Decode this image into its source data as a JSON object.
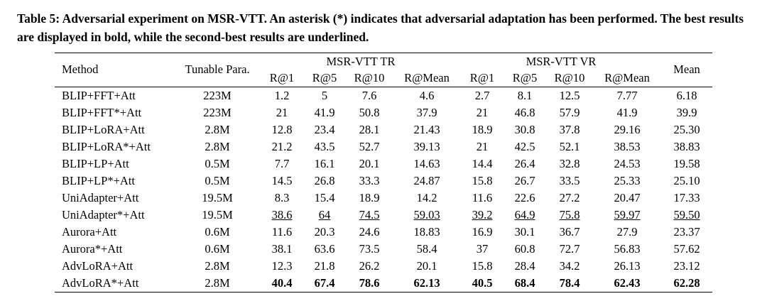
{
  "caption": {
    "label": "Table 5:",
    "text": "Adversarial experiment on MSR-VTT. An asterisk (*) indicates that adversarial adaptation has been performed. The best results are displayed in bold, while the second-best results are underlined."
  },
  "table": {
    "headers": {
      "method": "Method",
      "tunable": "Tunable Para.",
      "group_tr": "MSR-VTT TR",
      "group_vr": "MSR-VTT VR",
      "mean": "Mean",
      "sub": [
        "R@1",
        "R@5",
        "R@10",
        "R@Mean",
        "R@1",
        "R@5",
        "R@10",
        "R@Mean"
      ]
    },
    "rows": [
      {
        "method": "BLIP+FFT+Att",
        "tunable": "223M",
        "style": "normal",
        "values": [
          "1.2",
          "5",
          "7.6",
          "4.6",
          "2.7",
          "8.1",
          "12.5",
          "7.77",
          "6.18"
        ]
      },
      {
        "method": "BLIP+FFT*+Att",
        "tunable": "223M",
        "style": "normal",
        "values": [
          "21",
          "41.9",
          "50.8",
          "37.9",
          "21",
          "46.8",
          "57.9",
          "41.9",
          "39.9"
        ]
      },
      {
        "method": "BLIP+LoRA+Att",
        "tunable": "2.8M",
        "style": "normal",
        "values": [
          "12.8",
          "23.4",
          "28.1",
          "21.43",
          "18.9",
          "30.8",
          "37.8",
          "29.16",
          "25.30"
        ]
      },
      {
        "method": "BLIP+LoRA*+Att",
        "tunable": "2.8M",
        "style": "normal",
        "values": [
          "21.2",
          "43.5",
          "52.7",
          "39.13",
          "21",
          "42.5",
          "52.1",
          "38.53",
          "38.83"
        ]
      },
      {
        "method": "BLIP+LP+Att",
        "tunable": "0.5M",
        "style": "normal",
        "values": [
          "7.7",
          "16.1",
          "20.1",
          "14.63",
          "14.4",
          "26.4",
          "32.8",
          "24.53",
          "19.58"
        ]
      },
      {
        "method": "BLIP+LP*+Att",
        "tunable": "0.5M",
        "style": "normal",
        "values": [
          "14.5",
          "26.8",
          "33.3",
          "24.87",
          "15.8",
          "26.7",
          "33.5",
          "25.33",
          "25.10"
        ]
      },
      {
        "method": "UniAdapter+Att",
        "tunable": "19.5M",
        "style": "normal",
        "values": [
          "8.3",
          "15.4",
          "18.9",
          "14.2",
          "11.6",
          "22.6",
          "27.2",
          "20.47",
          "17.33"
        ]
      },
      {
        "method": "UniAdapter*+Att",
        "tunable": "19.5M",
        "style": "underline",
        "values": [
          "38.6",
          "64",
          "74.5",
          "59.03",
          "39.2",
          "64.9",
          "75.8",
          "59.97",
          "59.50"
        ]
      },
      {
        "method": "Aurora+Att",
        "tunable": "0.6M",
        "style": "normal",
        "values": [
          "11.6",
          "20.3",
          "24.6",
          "18.83",
          "16.9",
          "30.1",
          "36.7",
          "27.9",
          "23.37"
        ]
      },
      {
        "method": "Aurora*+Att",
        "tunable": "0.6M",
        "style": "normal",
        "values": [
          "38.1",
          "63.6",
          "73.5",
          "58.4",
          "37",
          "60.8",
          "72.7",
          "56.83",
          "57.62"
        ]
      },
      {
        "method": "AdvLoRA+Att",
        "tunable": "2.8M",
        "style": "normal",
        "values": [
          "12.3",
          "21.8",
          "26.2",
          "20.1",
          "15.8",
          "28.4",
          "34.2",
          "26.13",
          "23.12"
        ]
      },
      {
        "method": "AdvLoRA*+Att",
        "tunable": "2.8M",
        "style": "bold",
        "values": [
          "40.4",
          "67.4",
          "78.6",
          "62.13",
          "40.5",
          "68.4",
          "78.4",
          "62.43",
          "62.28"
        ]
      }
    ]
  }
}
